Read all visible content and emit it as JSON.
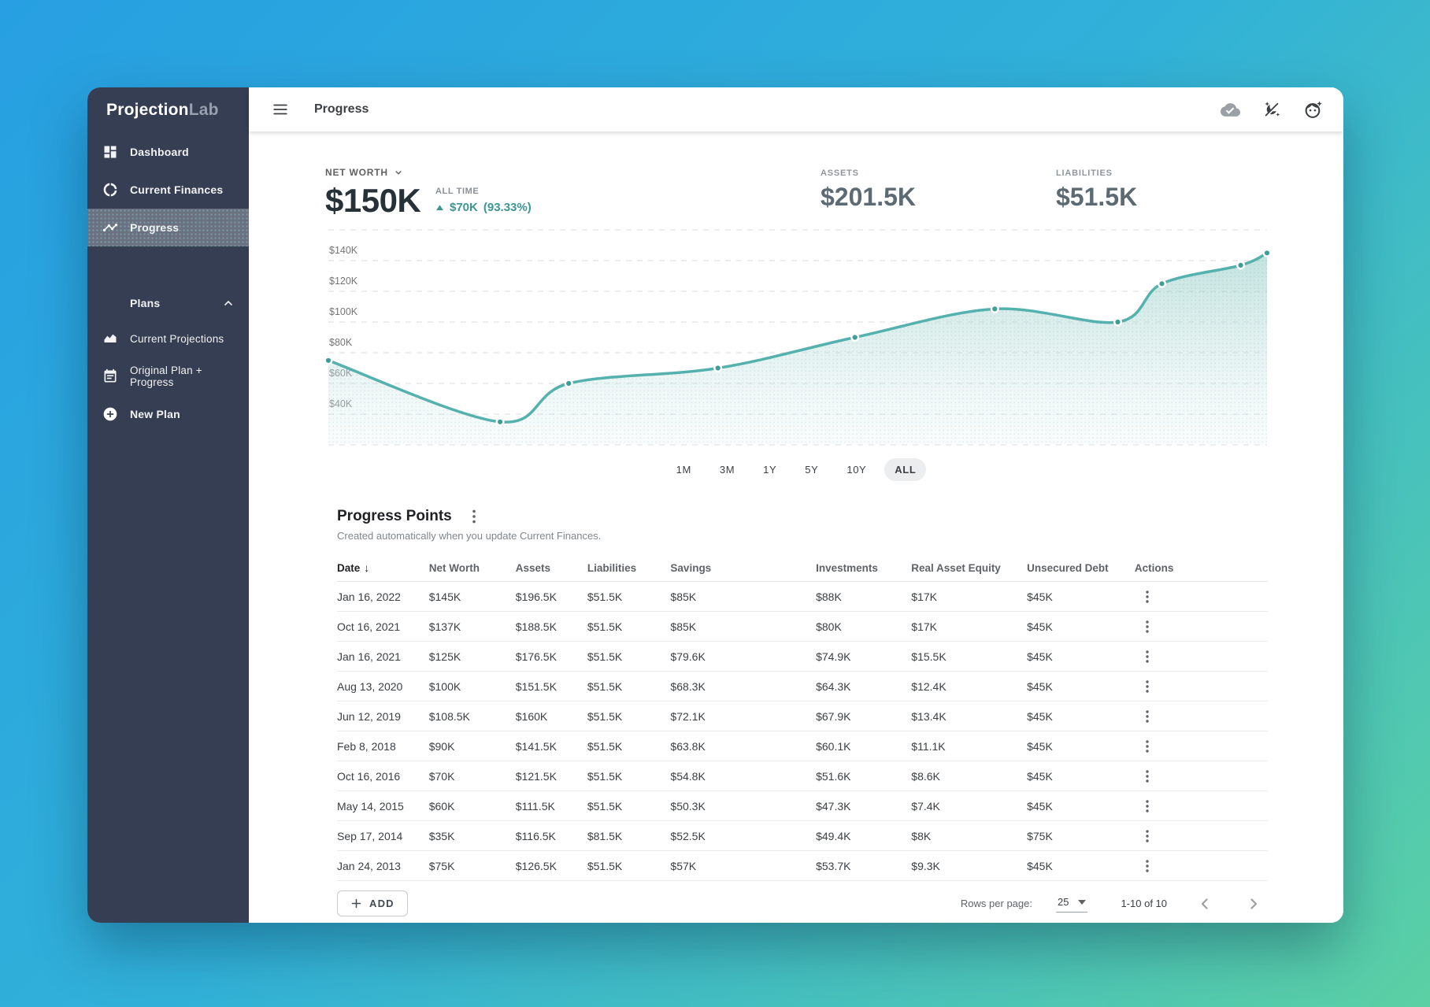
{
  "app": {
    "brand_primary": "Projection",
    "brand_secondary": "Lab"
  },
  "topbar": {
    "title": "Progress"
  },
  "sidebar": {
    "items": [
      {
        "label": "Dashboard",
        "active": false
      },
      {
        "label": "Current Finances",
        "active": false
      },
      {
        "label": "Progress",
        "active": true
      }
    ],
    "plans_label": "Plans",
    "plans_items": [
      {
        "label": "Current Projections"
      },
      {
        "label": "Original Plan + Progress"
      },
      {
        "label": "New Plan"
      }
    ]
  },
  "summary": {
    "metric_label": "NET WORTH",
    "metric_value": "$150K",
    "period_label": "ALL TIME",
    "change_value": "$70K",
    "change_percent": "(93.33%)",
    "assets_label": "ASSETS",
    "assets_value": "$201.5K",
    "liabilities_label": "LIABILITIES",
    "liabilities_value": "$51.5K",
    "accent_color": "#3a9793"
  },
  "ranges": {
    "labels": [
      "1M",
      "3M",
      "1Y",
      "5Y",
      "10Y",
      "ALL"
    ],
    "active": "ALL"
  },
  "chart_data": {
    "type": "area",
    "title": "Net worth over time",
    "unit": "$K",
    "y_ticks": [
      "$140K",
      "$120K",
      "$100K",
      "$80K",
      "$60K",
      "$40K"
    ],
    "y_grid_range": [
      20,
      160
    ],
    "grid_step": 20,
    "x_range": [
      "Jan 24, 2013",
      "Jan 16, 2022"
    ],
    "line_color": "#55b1ad",
    "dot_color": "#3e9d99",
    "series": [
      {
        "name": "Net Worth",
        "points": [
          {
            "date": "Jan 24, 2013",
            "value": 75,
            "x": 0.0
          },
          {
            "date": "Sep 17, 2014",
            "value": 35,
            "x": 0.183
          },
          {
            "date": "May 14, 2015",
            "value": 60,
            "x": 0.256
          },
          {
            "date": "Oct 16, 2016",
            "value": 70,
            "x": 0.415
          },
          {
            "date": "Feb 8, 2018",
            "value": 90,
            "x": 0.561
          },
          {
            "date": "Jun 12, 2019",
            "value": 108.5,
            "x": 0.71
          },
          {
            "date": "Aug 13, 2020",
            "value": 100,
            "x": 0.841
          },
          {
            "date": "Jan 16, 2021",
            "value": 125,
            "x": 0.888
          },
          {
            "date": "Oct 16, 2021",
            "value": 137,
            "x": 0.972
          },
          {
            "date": "Jan 16, 2022",
            "value": 145,
            "x": 1.0
          }
        ]
      }
    ]
  },
  "table": {
    "title": "Progress Points",
    "subtitle": "Created automatically when you update Current Finances.",
    "sort_column": "Date",
    "columns": [
      "Date",
      "Net Worth",
      "Assets",
      "Liabilities",
      "Savings",
      "Investments",
      "Real Asset Equity",
      "Unsecured Debt",
      "Actions"
    ],
    "rows": [
      [
        "Jan 16, 2022",
        "$145K",
        "$196.5K",
        "$51.5K",
        "$85K",
        "$88K",
        "$17K",
        "$45K"
      ],
      [
        "Oct 16, 2021",
        "$137K",
        "$188.5K",
        "$51.5K",
        "$85K",
        "$80K",
        "$17K",
        "$45K"
      ],
      [
        "Jan 16, 2021",
        "$125K",
        "$176.5K",
        "$51.5K",
        "$79.6K",
        "$74.9K",
        "$15.5K",
        "$45K"
      ],
      [
        "Aug 13, 2020",
        "$100K",
        "$151.5K",
        "$51.5K",
        "$68.3K",
        "$64.3K",
        "$12.4K",
        "$45K"
      ],
      [
        "Jun 12, 2019",
        "$108.5K",
        "$160K",
        "$51.5K",
        "$72.1K",
        "$67.9K",
        "$13.4K",
        "$45K"
      ],
      [
        "Feb 8, 2018",
        "$90K",
        "$141.5K",
        "$51.5K",
        "$63.8K",
        "$60.1K",
        "$11.1K",
        "$45K"
      ],
      [
        "Oct 16, 2016",
        "$70K",
        "$121.5K",
        "$51.5K",
        "$54.8K",
        "$51.6K",
        "$8.6K",
        "$45K"
      ],
      [
        "May 14, 2015",
        "$60K",
        "$111.5K",
        "$51.5K",
        "$50.3K",
        "$47.3K",
        "$7.4K",
        "$45K"
      ],
      [
        "Sep 17, 2014",
        "$35K",
        "$116.5K",
        "$81.5K",
        "$52.5K",
        "$49.4K",
        "$8K",
        "$75K"
      ],
      [
        "Jan 24, 2013",
        "$75K",
        "$126.5K",
        "$51.5K",
        "$57K",
        "$53.7K",
        "$9.3K",
        "$45K"
      ]
    ]
  },
  "footer": {
    "add_label": "ADD",
    "rows_per_page_label": "Rows per page:",
    "rows_per_page_value": "25",
    "range_label": "1-10 of 10"
  }
}
